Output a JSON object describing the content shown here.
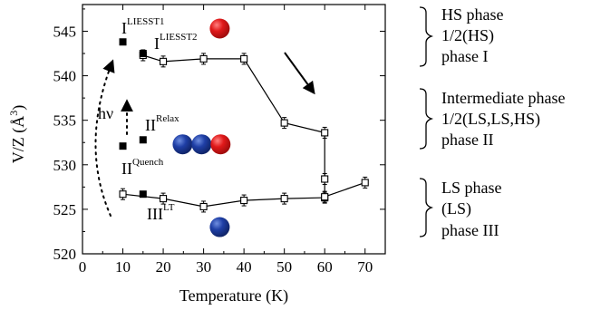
{
  "chart_data": {
    "type": "scatter",
    "xlabel": "Temperature (K)",
    "ylabel_main": "V/Z (",
    "ylabel_unit": "Å",
    "ylabel_exp": "3",
    "ylabel_close": ")",
    "xlim": [
      0,
      75
    ],
    "ylim": [
      520,
      548
    ],
    "xticks": [
      0,
      10,
      20,
      30,
      40,
      50,
      60,
      70
    ],
    "yticks": [
      520,
      525,
      530,
      535,
      540,
      545
    ],
    "grid": false,
    "series": [
      {
        "marker": "open-square",
        "connected": true,
        "points": [
          {
            "x": 15,
            "y": 542.3
          },
          {
            "x": 20,
            "y": 541.6
          },
          {
            "x": 30,
            "y": 541.9
          },
          {
            "x": 40,
            "y": 541.9
          },
          {
            "x": 50,
            "y": 534.7
          },
          {
            "x": 60,
            "y": 533.6
          },
          {
            "x": 60,
            "y": 528.4
          },
          {
            "x": 60,
            "y": 526.3
          },
          {
            "x": 50,
            "y": 526.2
          },
          {
            "x": 40,
            "y": 526.0
          },
          {
            "x": 30,
            "y": 525.3
          },
          {
            "x": 20,
            "y": 526.2
          },
          {
            "x": 10,
            "y": 526.7
          }
        ]
      },
      {
        "marker": "open-square",
        "connected": true,
        "points": [
          {
            "x": 60,
            "y": 526.4
          },
          {
            "x": 70,
            "y": 528.0
          }
        ]
      },
      {
        "marker": "filled-square",
        "connected": false,
        "points": [
          {
            "x": 10,
            "y": 543.8
          },
          {
            "x": 15,
            "y": 542.5
          },
          {
            "x": 10,
            "y": 532.1
          },
          {
            "x": 15,
            "y": 532.8
          },
          {
            "x": 15,
            "y": 526.7
          }
        ]
      }
    ],
    "annotations": [
      {
        "base": "I",
        "sup": "LIESST1",
        "sub": ""
      },
      {
        "base": "I",
        "sup": "LIESST2",
        "sub": ""
      },
      {
        "base": "II",
        "sup": "Relax",
        "sub": ""
      },
      {
        "base": "II",
        "sup": "Quench",
        "sub": ""
      },
      {
        "base": "III",
        "sup": "LT",
        "sub": ""
      },
      {
        "base": "hν",
        "sup": "",
        "sub": ""
      }
    ],
    "phase_labels": [
      {
        "lines": [
          "HS phase",
          "1/2(HS)",
          "phase I"
        ]
      },
      {
        "lines": [
          "Intermediate phase",
          "1/2(LS,LS,HS)",
          "phase II"
        ]
      },
      {
        "lines": [
          "LS phase",
          "(LS)",
          "phase III"
        ]
      }
    ],
    "spin_balls": [
      {
        "x": 34,
        "y": 545.3,
        "state": "HS"
      },
      {
        "x": 24.8,
        "y": 532.3,
        "state": "LS"
      },
      {
        "x": 29.5,
        "y": 532.3,
        "state": "LS"
      },
      {
        "x": 34.2,
        "y": 532.3,
        "state": "HS"
      },
      {
        "x": 34,
        "y": 523.0,
        "state": "LS"
      }
    ],
    "colors": {
      "HS": "#e0191a",
      "LS": "#1f3fa6",
      "HS_dark": "#9e0c0c",
      "LS_dark": "#0f2366",
      "ink": "#000000"
    }
  }
}
